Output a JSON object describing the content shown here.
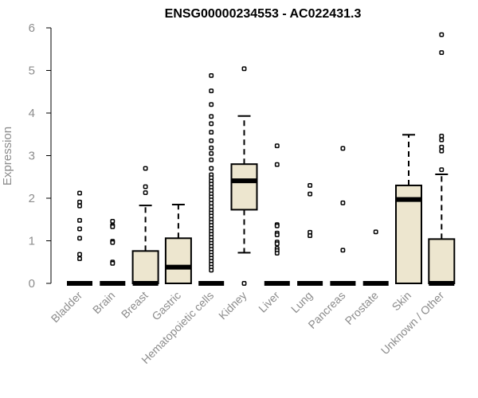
{
  "chart_data": {
    "type": "box",
    "title": "ENSG00000234553 - AC022431.3",
    "ylabel": "Expression",
    "xlabel": "",
    "ylim": [
      0,
      6
    ],
    "yticks": [
      "0",
      "1",
      "2",
      "3",
      "4",
      "5",
      "6"
    ],
    "categories": [
      "Bladder",
      "Brain",
      "Breast",
      "Gastric",
      "Hematopoietic cells",
      "Kidney",
      "Liver",
      "Lung",
      "Pancreas",
      "Prostate",
      "Skin",
      "Unknown / Other"
    ],
    "box_fill": "#ede6cf",
    "boxes": [
      {
        "min": 0,
        "q1": 0,
        "median": 0,
        "q3": 0,
        "max": 0,
        "outliers": [
          2.12,
          1.91,
          1.82,
          1.48,
          1.28,
          1.06,
          0.68,
          0.58
        ]
      },
      {
        "min": 0,
        "q1": 0,
        "median": 0,
        "q3": 0,
        "max": 0,
        "outliers": [
          1.46,
          1.36,
          1.33,
          0.99,
          0.96,
          0.5,
          0.47
        ]
      },
      {
        "min": 0,
        "q1": 0,
        "median": 0,
        "q3": 0.76,
        "max": 1.83,
        "outliers": [
          2.7,
          2.27,
          2.13
        ]
      },
      {
        "min": 0,
        "q1": 0,
        "median": 0.38,
        "q3": 1.06,
        "max": 1.85,
        "outliers": []
      },
      {
        "min": 0,
        "q1": 0,
        "median": 0,
        "q3": 0,
        "max": 0,
        "outliers": [
          4.88,
          4.52,
          4.2,
          3.92,
          3.75,
          3.55,
          3.35,
          3.18,
          3.05,
          2.9,
          2.7,
          2.55,
          2.48,
          2.4,
          2.33,
          2.25,
          2.18,
          2.1,
          2.03,
          1.96,
          1.88,
          1.8,
          1.72,
          1.65,
          1.58,
          1.5,
          1.43,
          1.36,
          1.29,
          1.22,
          1.15,
          1.08,
          1.01,
          0.94,
          0.87,
          0.8,
          0.73,
          0.66,
          0.59,
          0.52,
          0.45,
          0.38,
          0.31
        ]
      },
      {
        "min": 0.72,
        "q1": 1.73,
        "median": 2.41,
        "q3": 2.8,
        "max": 3.93,
        "outliers": [
          5.04,
          0.0
        ]
      },
      {
        "min": 0,
        "q1": 0,
        "median": 0,
        "q3": 0,
        "max": 0,
        "outliers": [
          3.23,
          2.79,
          1.38,
          1.35,
          1.18,
          1.14,
          0.97,
          0.93,
          0.82,
          0.77,
          0.71
        ]
      },
      {
        "min": 0,
        "q1": 0,
        "median": 0,
        "q3": 0,
        "max": 0,
        "outliers": [
          2.3,
          2.1,
          1.2,
          1.12
        ]
      },
      {
        "min": 0,
        "q1": 0,
        "median": 0,
        "q3": 0,
        "max": 0,
        "outliers": [
          3.17,
          1.89,
          0.78
        ]
      },
      {
        "min": 0,
        "q1": 0,
        "median": 0,
        "q3": 0,
        "max": 0,
        "outliers": [
          1.21
        ]
      },
      {
        "min": 0,
        "q1": 0,
        "median": 1.97,
        "q3": 2.3,
        "max": 3.49,
        "outliers": []
      },
      {
        "min": 0,
        "q1": 0,
        "median": 0,
        "q3": 1.04,
        "max": 2.56,
        "outliers": [
          5.84,
          5.42,
          3.46,
          3.37,
          3.2,
          3.11,
          2.67
        ]
      }
    ]
  }
}
